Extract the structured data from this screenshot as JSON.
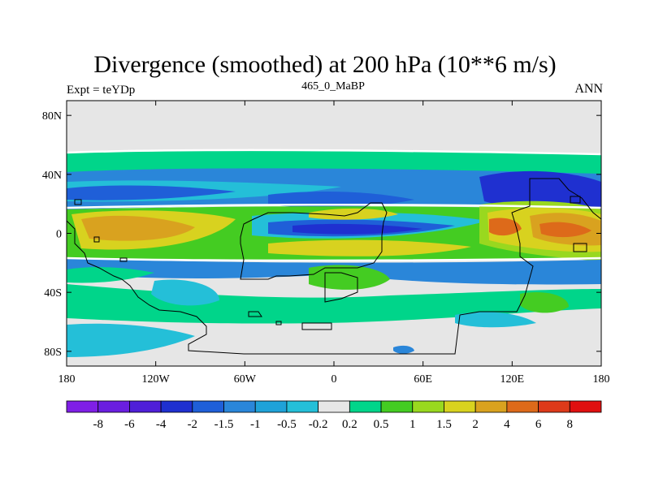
{
  "header": {
    "title": "Divergence (smoothed) at 200 hPa (10**6 m/s)",
    "experiment": "Expt = teYDp",
    "center_label": "465_0_MaBP",
    "season": "ANN"
  },
  "axes": {
    "y_ticks": [
      {
        "label": "80N",
        "lat": 80
      },
      {
        "label": "40N",
        "lat": 40
      },
      {
        "label": "0",
        "lat": 0
      },
      {
        "label": "40S",
        "lat": -40
      },
      {
        "label": "80S",
        "lat": -80
      }
    ],
    "x_ticks": [
      {
        "label": "180",
        "lon": -180
      },
      {
        "label": "120W",
        "lon": -120
      },
      {
        "label": "60W",
        "lon": -60
      },
      {
        "label": "0",
        "lon": 0
      },
      {
        "label": "60E",
        "lon": 60
      },
      {
        "label": "120E",
        "lon": 120
      },
      {
        "label": "180",
        "lon": 180
      }
    ],
    "lon_range": [
      -180,
      180
    ],
    "lat_range": [
      -90,
      90
    ]
  },
  "colorbar": {
    "colors": [
      "#7f1fe6",
      "#6a1ee0",
      "#4f1fd8",
      "#1f30d0",
      "#1f5fd8",
      "#2a86d9",
      "#1fa2d8",
      "#24bfd8",
      "#e6e6e6",
      "#00d58a",
      "#44cc22",
      "#99d81f",
      "#d8d21f",
      "#d9a21f",
      "#dd6a1a",
      "#dd3a1a",
      "#e01010"
    ],
    "labels": [
      "-8",
      "-6",
      "-4",
      "-2",
      "-1.5",
      "-1",
      "-0.5",
      "-0.2",
      "0.2",
      "0.5",
      "1",
      "1.5",
      "2",
      "4",
      "6",
      "8"
    ]
  }
}
